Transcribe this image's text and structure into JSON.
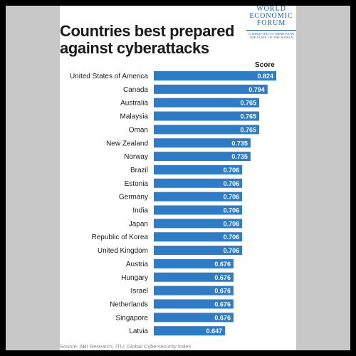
{
  "chart_data": {
    "type": "bar",
    "orientation": "horizontal",
    "title": "Countries best prepared against cyberattacks",
    "value_header": "Score",
    "categories": [
      "United States of America",
      "Canada",
      "Australia",
      "Malaysia",
      "Oman",
      "New Zealand",
      "Norway",
      "Brazil",
      "Estonia",
      "Germany",
      "India",
      "Japan",
      "Republic of Korea",
      "United Kingdom",
      "Austria",
      "Hungary",
      "Israel",
      "Netherlands",
      "Singapore",
      "Latvia"
    ],
    "values": [
      0.824,
      0.794,
      0.765,
      0.765,
      0.765,
      0.735,
      0.735,
      0.706,
      0.706,
      0.706,
      0.706,
      0.706,
      0.706,
      0.706,
      0.676,
      0.676,
      0.676,
      0.676,
      0.676,
      0.647
    ],
    "value_labels": [
      "0.824",
      "0.794",
      "0.765",
      "0.765",
      "0.765",
      "0.735",
      "0.735",
      "0.706",
      "0.706",
      "0.706",
      "0.706",
      "0.706",
      "0.706",
      "0.706",
      "0.676",
      "0.676",
      "0.676",
      "0.676",
      "0.676",
      "0.647"
    ],
    "bar_color": "#2e7bc6",
    "grid": false,
    "source": "Source: ABI Research, ITU, Global Cybersecurity Index"
  },
  "logo": {
    "line1": "WORLD",
    "line2": "ECONOMIC",
    "line3": "FORUM",
    "tagline": "COMMITTED TO IMPROVING THE STATE OF THE WORLD",
    "color": "#1f5fa8"
  }
}
